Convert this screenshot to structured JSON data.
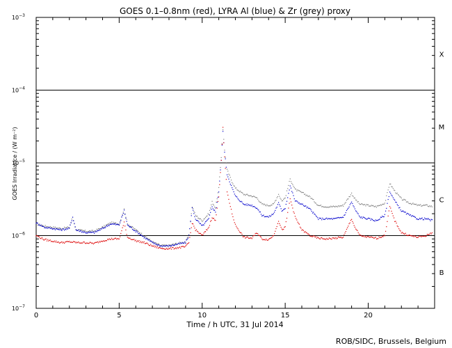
{
  "chart_data": {
    "type": "line",
    "title": "GOES 0.1–0.8nm (red), LYRA Al (blue) & Zr (grey) proxy",
    "xlabel": "Time / h UTC, 31 Jul 2014",
    "ylabel": "GOES Irradiance / (W m⁻²)",
    "xlim": [
      0,
      24
    ],
    "ylim": [
      1e-07,
      0.001
    ],
    "yscale": "log",
    "x_ticks": [
      0,
      5,
      10,
      15,
      20
    ],
    "y_tick_labels": [
      {
        "value": 1e-07,
        "base": "10",
        "exp": "−7"
      },
      {
        "value": 1e-06,
        "base": "10",
        "exp": "−6"
      },
      {
        "value": 1e-05,
        "base": "10",
        "exp": "−5"
      },
      {
        "value": 0.0001,
        "base": "10",
        "exp": "−4"
      },
      {
        "value": 0.001,
        "base": "10",
        "exp": "−3"
      }
    ],
    "class_lines": [
      1e-06,
      1e-05,
      0.0001
    ],
    "flare_classes": [
      {
        "label": "B",
        "y": 3.16e-07
      },
      {
        "label": "C",
        "y": 3.16e-06
      },
      {
        "label": "M",
        "y": 3.16e-05
      },
      {
        "label": "X",
        "y": 0.000316
      }
    ],
    "series": [
      {
        "color": "#808080",
        "points": [
          [
            0,
            1.45e-06
          ],
          [
            0.5,
            1.35e-06
          ],
          [
            1,
            1.3e-06
          ],
          [
            1.5,
            1.25e-06
          ],
          [
            2,
            1.3e-06
          ],
          [
            2.2,
            1.8e-06
          ],
          [
            2.4,
            1.2e-06
          ],
          [
            3,
            1.15e-06
          ],
          [
            3.5,
            1.15e-06
          ],
          [
            4,
            1.3e-06
          ],
          [
            4.5,
            1.5e-06
          ],
          [
            5,
            1.45e-06
          ],
          [
            5.3,
            2.3e-06
          ],
          [
            5.5,
            1.45e-06
          ],
          [
            6,
            1.2e-06
          ],
          [
            6.5,
            1e-06
          ],
          [
            7,
            8.2e-07
          ],
          [
            7.5,
            7.3e-07
          ],
          [
            8,
            7.3e-07
          ],
          [
            8.5,
            7.8e-07
          ],
          [
            9,
            8.2e-07
          ],
          [
            9.2,
            1e-06
          ],
          [
            9.4,
            2.5e-06
          ],
          [
            9.6,
            1.9e-06
          ],
          [
            10,
            1.6e-06
          ],
          [
            10.4,
            2e-06
          ],
          [
            10.6,
            2.9e-06
          ],
          [
            10.8,
            2.4e-06
          ],
          [
            11,
            4.5e-06
          ],
          [
            11.15,
            1.2e-05
          ],
          [
            11.25,
            2.9e-05
          ],
          [
            11.35,
            1.5e-05
          ],
          [
            11.5,
            8e-06
          ],
          [
            11.8,
            5.5e-06
          ],
          [
            12,
            4.5e-06
          ],
          [
            12.5,
            3.7e-06
          ],
          [
            13,
            3.5e-06
          ],
          [
            13.3,
            3.3e-06
          ],
          [
            13.6,
            2.7e-06
          ],
          [
            14,
            2.6e-06
          ],
          [
            14.3,
            2.7e-06
          ],
          [
            14.6,
            3.7e-06
          ],
          [
            14.8,
            3e-06
          ],
          [
            15,
            3.3e-06
          ],
          [
            15.3,
            6e-06
          ],
          [
            15.6,
            4.3e-06
          ],
          [
            16,
            3.9e-06
          ],
          [
            16.5,
            3.4e-06
          ],
          [
            17,
            2.6e-06
          ],
          [
            17.5,
            2.5e-06
          ],
          [
            18,
            2.5e-06
          ],
          [
            18.5,
            2.6e-06
          ],
          [
            19,
            3.8e-06
          ],
          [
            19.2,
            3.2e-06
          ],
          [
            19.5,
            2.7e-06
          ],
          [
            20,
            2.6e-06
          ],
          [
            20.5,
            2.5e-06
          ],
          [
            21,
            2.8e-06
          ],
          [
            21.3,
            5.2e-06
          ],
          [
            21.6,
            4.1e-06
          ],
          [
            22,
            3.2e-06
          ],
          [
            22.5,
            2.8e-06
          ],
          [
            23,
            2.6e-06
          ],
          [
            23.5,
            2.6e-06
          ],
          [
            23.9,
            2.5e-06
          ]
        ]
      },
      {
        "color": "#0000cc",
        "points": [
          [
            0,
            1.5e-06
          ],
          [
            0.5,
            1.3e-06
          ],
          [
            1,
            1.25e-06
          ],
          [
            1.5,
            1.2e-06
          ],
          [
            2,
            1.25e-06
          ],
          [
            2.2,
            1.8e-06
          ],
          [
            2.4,
            1.2e-06
          ],
          [
            3,
            1.1e-06
          ],
          [
            3.5,
            1.1e-06
          ],
          [
            4,
            1.25e-06
          ],
          [
            4.5,
            1.45e-06
          ],
          [
            5,
            1.4e-06
          ],
          [
            5.3,
            2.2e-06
          ],
          [
            5.5,
            1.4e-06
          ],
          [
            6,
            1.15e-06
          ],
          [
            6.5,
            9.5e-07
          ],
          [
            7,
            8e-07
          ],
          [
            7.5,
            7.2e-07
          ],
          [
            8,
            7.2e-07
          ],
          [
            8.5,
            7.6e-07
          ],
          [
            9,
            8e-07
          ],
          [
            9.2,
            1e-06
          ],
          [
            9.4,
            2.4e-06
          ],
          [
            9.6,
            1.7e-06
          ],
          [
            10,
            1.35e-06
          ],
          [
            10.4,
            1.7e-06
          ],
          [
            10.6,
            2.5e-06
          ],
          [
            10.8,
            2.1e-06
          ],
          [
            11,
            4e-06
          ],
          [
            11.15,
            1.1e-05
          ],
          [
            11.25,
            2.7e-05
          ],
          [
            11.35,
            1.4e-05
          ],
          [
            11.5,
            7e-06
          ],
          [
            11.8,
            4.5e-06
          ],
          [
            12,
            3.5e-06
          ],
          [
            12.5,
            2.7e-06
          ],
          [
            13,
            2.6e-06
          ],
          [
            13.3,
            2.4e-06
          ],
          [
            13.6,
            1.9e-06
          ],
          [
            14,
            1.8e-06
          ],
          [
            14.3,
            2e-06
          ],
          [
            14.6,
            2.8e-06
          ],
          [
            14.8,
            2.2e-06
          ],
          [
            15,
            2.4e-06
          ],
          [
            15.3,
            4.8e-06
          ],
          [
            15.6,
            3e-06
          ],
          [
            16,
            2.7e-06
          ],
          [
            16.5,
            2.3e-06
          ],
          [
            17,
            1.7e-06
          ],
          [
            17.5,
            1.7e-06
          ],
          [
            18,
            1.7e-06
          ],
          [
            18.5,
            1.8e-06
          ],
          [
            19,
            2.9e-06
          ],
          [
            19.2,
            2.3e-06
          ],
          [
            19.5,
            1.8e-06
          ],
          [
            20,
            1.7e-06
          ],
          [
            20.5,
            1.6e-06
          ],
          [
            21,
            1.9e-06
          ],
          [
            21.3,
            4e-06
          ],
          [
            21.6,
            3e-06
          ],
          [
            22,
            2.2e-06
          ],
          [
            22.5,
            1.9e-06
          ],
          [
            23,
            1.7e-06
          ],
          [
            23.5,
            1.7e-06
          ],
          [
            23.9,
            1.6e-06
          ]
        ]
      },
      {
        "color": "#dd0000",
        "points": [
          [
            0,
            1e-06
          ],
          [
            0.5,
            8.8e-07
          ],
          [
            1,
            8.4e-07
          ],
          [
            1.5,
            8e-07
          ],
          [
            2,
            8.2e-07
          ],
          [
            2.5,
            8e-07
          ],
          [
            3,
            8e-07
          ],
          [
            3.5,
            7.8e-07
          ],
          [
            4,
            8.5e-07
          ],
          [
            4.5,
            9e-07
          ],
          [
            5,
            9e-07
          ],
          [
            5.3,
            1.5e-06
          ],
          [
            5.5,
            9.5e-07
          ],
          [
            6,
            8.5e-07
          ],
          [
            6.5,
            8e-07
          ],
          [
            7,
            7.2e-07
          ],
          [
            7.5,
            6.7e-07
          ],
          [
            8,
            6.6e-07
          ],
          [
            8.5,
            6.8e-07
          ],
          [
            9,
            7e-07
          ],
          [
            9.2,
            8e-07
          ],
          [
            9.4,
            1.5e-06
          ],
          [
            9.6,
            1.2e-06
          ],
          [
            10,
            1e-06
          ],
          [
            10.4,
            1.3e-06
          ],
          [
            10.6,
            1.8e-06
          ],
          [
            10.8,
            1.6e-06
          ],
          [
            11,
            3.5e-06
          ],
          [
            11.15,
            1.1e-05
          ],
          [
            11.25,
            3e-05
          ],
          [
            11.35,
            1.2e-05
          ],
          [
            11.5,
            4e-06
          ],
          [
            11.8,
            2e-06
          ],
          [
            12,
            1.4e-06
          ],
          [
            12.5,
            9.5e-07
          ],
          [
            13,
            9.2e-07
          ],
          [
            13.3,
            1.1e-06
          ],
          [
            13.6,
            9e-07
          ],
          [
            14,
            8.8e-07
          ],
          [
            14.3,
            1e-06
          ],
          [
            14.6,
            1.6e-06
          ],
          [
            14.8,
            1.2e-06
          ],
          [
            15,
            1.3e-06
          ],
          [
            15.3,
            3.2e-06
          ],
          [
            15.6,
            1.8e-06
          ],
          [
            16,
            1.2e-06
          ],
          [
            16.5,
            1e-06
          ],
          [
            17,
            9.2e-07
          ],
          [
            17.5,
            9e-07
          ],
          [
            18,
            9.2e-07
          ],
          [
            18.5,
            9.5e-07
          ],
          [
            19,
            1.7e-06
          ],
          [
            19.2,
            1.3e-06
          ],
          [
            19.5,
            1e-06
          ],
          [
            20,
            9.5e-07
          ],
          [
            20.5,
            9.2e-07
          ],
          [
            21,
            1e-06
          ],
          [
            21.3,
            2.5e-06
          ],
          [
            21.6,
            1.6e-06
          ],
          [
            22,
            1.1e-06
          ],
          [
            22.5,
            1e-06
          ],
          [
            23,
            9.5e-07
          ],
          [
            23.5,
            1e-06
          ],
          [
            23.9,
            1.1e-06
          ]
        ]
      }
    ]
  },
  "credit": "ROB/SIDC, Brussels, Belgium"
}
